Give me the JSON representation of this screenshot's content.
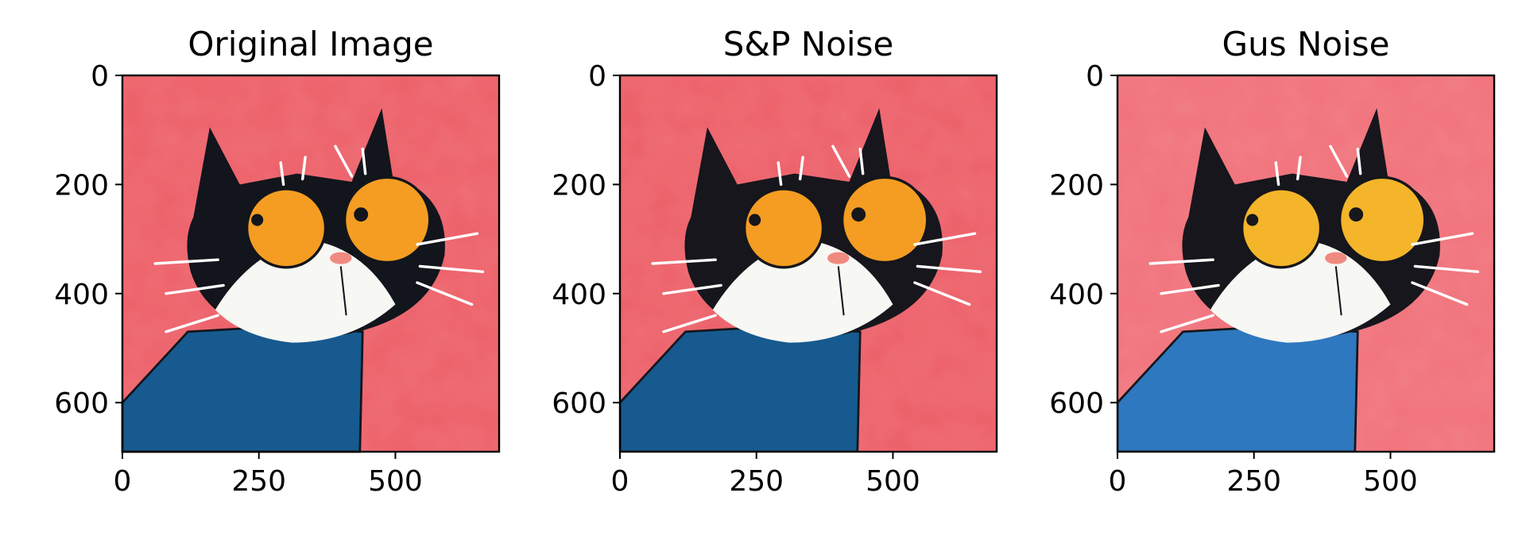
{
  "chart_data": [
    {
      "type": "image",
      "title": "Original Image",
      "variant": "original",
      "xlim": [
        0,
        690
      ],
      "ylim": [
        690,
        0
      ],
      "xticks": [
        0,
        250,
        500
      ],
      "yticks": [
        0,
        200,
        400,
        600
      ]
    },
    {
      "type": "image",
      "title": "S&P Noise",
      "variant": "sp",
      "xlim": [
        0,
        690
      ],
      "ylim": [
        690,
        0
      ],
      "xticks": [
        0,
        250,
        500
      ],
      "yticks": [
        0,
        200,
        400,
        600
      ]
    },
    {
      "type": "image",
      "title": "Gus Noise",
      "variant": "gauss",
      "xlim": [
        0,
        690
      ],
      "ylim": [
        690,
        0
      ],
      "xticks": [
        0,
        250,
        500
      ],
      "yticks": [
        0,
        200,
        400,
        600
      ]
    }
  ],
  "colors": {
    "background_red": "#ec5f68",
    "cat_black": "#12151c",
    "eye_orange": "#f49d22",
    "sweater_blue": "#175a8f",
    "nose_pink": "#f08a80",
    "face_white": "#f7f7f4"
  }
}
